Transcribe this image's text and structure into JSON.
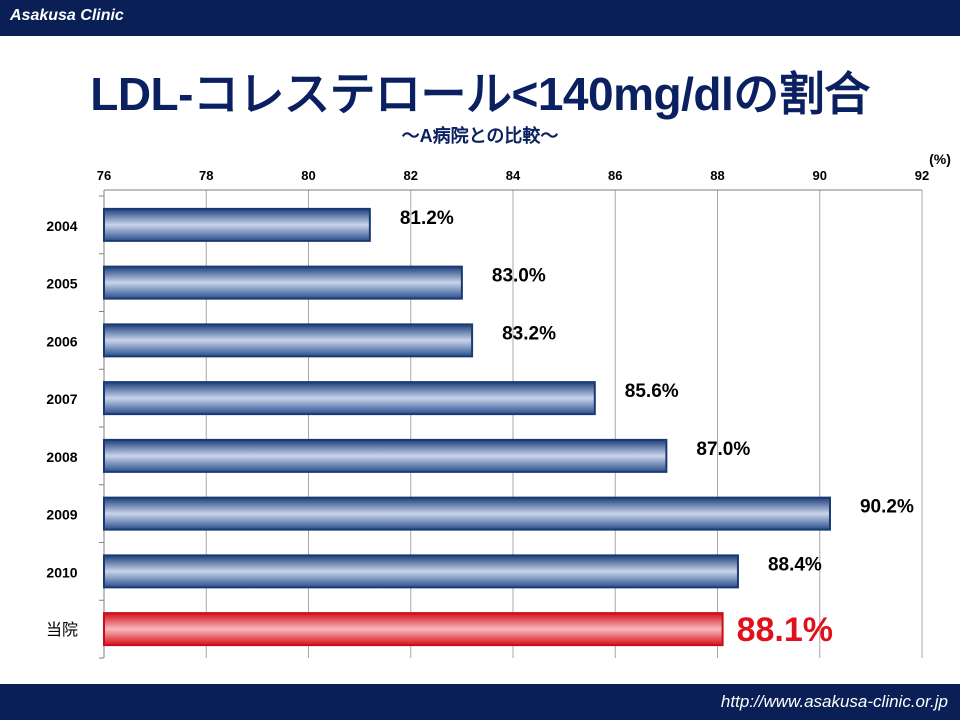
{
  "header": {
    "brand": "Asakusa Clinic"
  },
  "title": "LDL-コレステロール<140mg/dlの割合",
  "subtitle": "～A病院との比較～",
  "footer": {
    "url": "http://www.asakusa-clinic.or.jp"
  },
  "colors": {
    "navy": "#0a1f55",
    "bar_blue": "#2d5290",
    "bar_red": "#e0101c",
    "highlight_label": "#e0101c"
  },
  "chart_data": {
    "type": "bar",
    "orientation": "horizontal",
    "unit_label": "(%)",
    "xlim": [
      76,
      92
    ],
    "ticks": [
      "76",
      "78",
      "80",
      "82",
      "84",
      "86",
      "88",
      "90",
      "92"
    ],
    "tick_values": [
      76,
      78,
      80,
      82,
      84,
      86,
      88,
      90,
      92
    ],
    "grid": true,
    "categories": [
      "2004",
      "2005",
      "2006",
      "2007",
      "2008",
      "2009",
      "2010",
      "当院"
    ],
    "values": [
      81.2,
      83.0,
      83.2,
      85.6,
      87.0,
      90.2,
      88.4,
      88.1
    ],
    "value_labels": [
      "81.2%",
      "83.0%",
      "83.2%",
      "85.6%",
      "87.0%",
      "90.2%",
      "88.4%",
      "88.1%"
    ],
    "highlight_index": 7
  }
}
